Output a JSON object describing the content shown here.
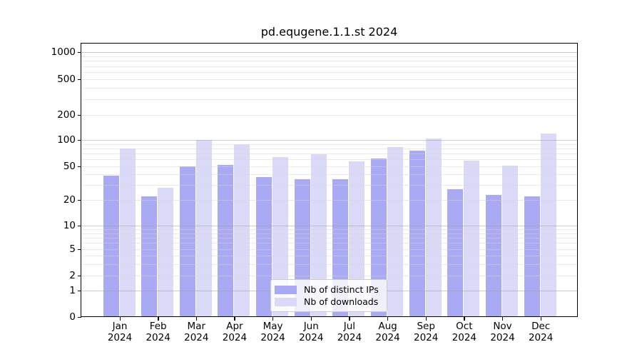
{
  "title": "pd.equgene.1.1.st 2024",
  "colors": {
    "distinct_ips": "#a9a9f4",
    "downloads": "#dadaf8",
    "grid_major": "#c8c8c8",
    "grid_minor": "#e9e9e9",
    "axis": "#000000"
  },
  "legend": {
    "items": [
      {
        "label": "Nb of distinct IPs",
        "series": "distinct_ips"
      },
      {
        "label": "Nb of downloads",
        "series": "downloads"
      }
    ]
  },
  "x_axis": {
    "months": [
      "Jan",
      "Feb",
      "Mar",
      "Apr",
      "May",
      "Jun",
      "Jul",
      "Aug",
      "Sep",
      "Oct",
      "Nov",
      "Dec"
    ],
    "year": "2024"
  },
  "y_axis": {
    "ticks": [
      1000,
      500,
      200,
      100,
      50,
      20,
      10,
      5,
      2,
      1,
      0
    ]
  },
  "chart_data": {
    "type": "bar",
    "title": "pd.equgene.1.1.st 2024",
    "categories": [
      "Jan 2024",
      "Feb 2024",
      "Mar 2024",
      "Apr 2024",
      "May 2024",
      "Jun 2024",
      "Jul 2024",
      "Aug 2024",
      "Sep 2024",
      "Oct 2024",
      "Nov 2024",
      "Dec 2024"
    ],
    "series": [
      {
        "name": "Nb of distinct IPs",
        "color": "#a9a9f4",
        "values": [
          39,
          22,
          50,
          52,
          37,
          35,
          35,
          62,
          76,
          27,
          23,
          22
        ]
      },
      {
        "name": "Nb of downloads",
        "color": "#dadaf8",
        "values": [
          80,
          28,
          100,
          90,
          64,
          69,
          57,
          83,
          105,
          58,
          51,
          120
        ]
      }
    ],
    "yscale": "symlog",
    "yticks": [
      0,
      1,
      2,
      5,
      10,
      20,
      50,
      100,
      200,
      500,
      1000
    ],
    "ylim": [
      0,
      1300
    ],
    "xlabel": "",
    "ylabel": "",
    "grid": true,
    "legend_position": "lower center"
  }
}
